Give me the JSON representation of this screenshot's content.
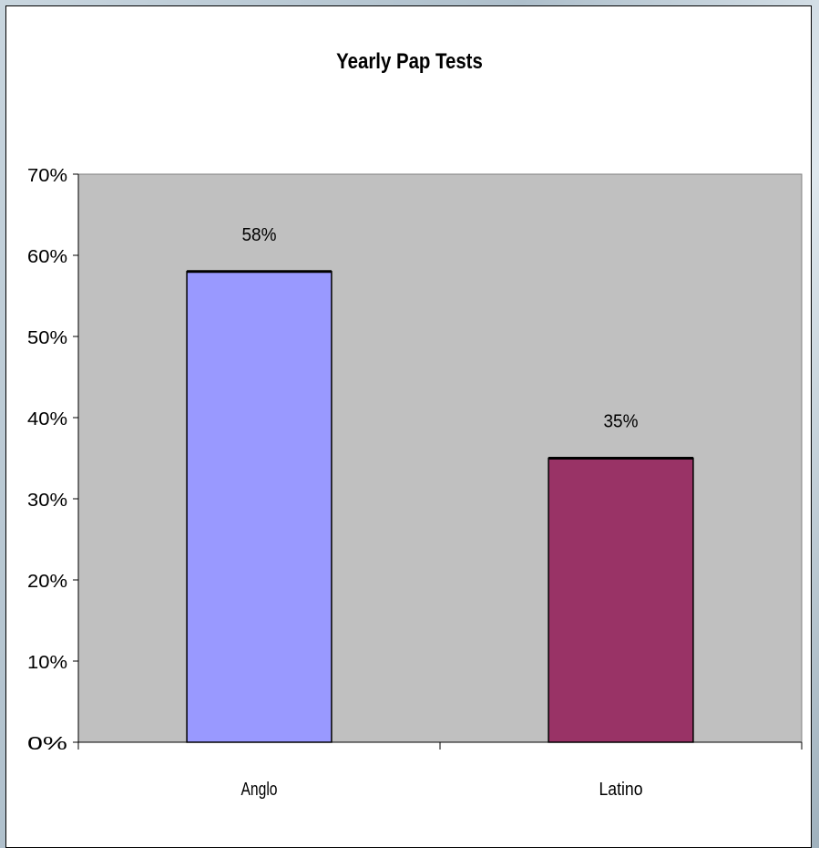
{
  "chart_data": {
    "type": "bar",
    "title": "Yearly Pap Tests",
    "xlabel": "",
    "ylabel": "",
    "categories": [
      "Anglo",
      "Latino"
    ],
    "values": [
      58,
      35
    ],
    "data_labels": [
      "58%",
      "35%"
    ],
    "ylim": [
      0,
      70
    ],
    "y_ticks": [
      0,
      10,
      20,
      30,
      40,
      50,
      60,
      70
    ],
    "y_tick_labels": [
      "0%",
      "10%",
      "20%",
      "30%",
      "40%",
      "50%",
      "60%",
      "70%"
    ],
    "bar_colors": [
      "#9999ff",
      "#993366"
    ],
    "plot_background": "#c0c0c0",
    "grid": false,
    "legend": "none"
  }
}
